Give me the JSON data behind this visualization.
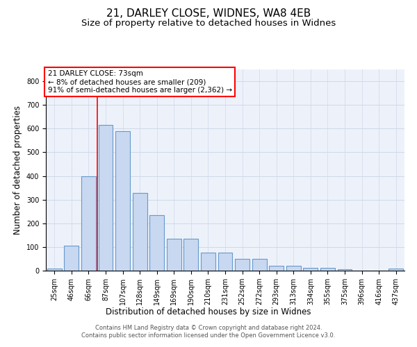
{
  "title1": "21, DARLEY CLOSE, WIDNES, WA8 4EB",
  "title2": "Size of property relative to detached houses in Widnes",
  "xlabel": "Distribution of detached houses by size in Widnes",
  "ylabel": "Number of detached properties",
  "categories": [
    "25sqm",
    "46sqm",
    "66sqm",
    "87sqm",
    "107sqm",
    "128sqm",
    "149sqm",
    "169sqm",
    "190sqm",
    "210sqm",
    "231sqm",
    "252sqm",
    "272sqm",
    "293sqm",
    "313sqm",
    "334sqm",
    "355sqm",
    "375sqm",
    "396sqm",
    "416sqm",
    "437sqm"
  ],
  "bar_values": [
    8,
    105,
    400,
    615,
    590,
    328,
    235,
    135,
    135,
    75,
    75,
    50,
    50,
    20,
    20,
    13,
    13,
    5,
    0,
    0,
    8
  ],
  "bar_color": "#c8d8f0",
  "bar_edge_color": "#6699cc",
  "red_line_x": 2.5,
  "annotation_line1": "21 DARLEY CLOSE: 73sqm",
  "annotation_line2": "← 8% of detached houses are smaller (209)",
  "annotation_line3": "91% of semi-detached houses are larger (2,362) →",
  "ylim": [
    0,
    850
  ],
  "yticks": [
    0,
    100,
    200,
    300,
    400,
    500,
    600,
    700,
    800
  ],
  "background_color": "#edf2fa",
  "grid_color": "#d0d8e8",
  "footer_text": "Contains HM Land Registry data © Crown copyright and database right 2024.\nContains public sector information licensed under the Open Government Licence v3.0.",
  "title_fontsize": 11,
  "subtitle_fontsize": 9.5,
  "tick_fontsize": 7,
  "ylabel_fontsize": 8.5,
  "xlabel_fontsize": 8.5,
  "annotation_fontsize": 7.5,
  "footer_fontsize": 6,
  "bar_width": 0.85
}
